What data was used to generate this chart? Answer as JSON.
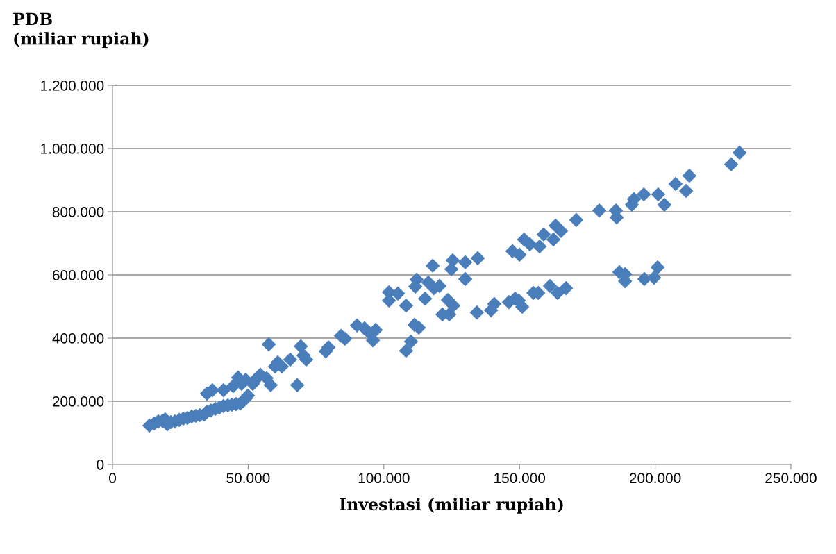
{
  "chart_data": {
    "type": "scatter",
    "xlabel": "Investasi (miliar rupiah)",
    "ylabel": "PDB\n(miliar rupiah)",
    "xlim": [
      0,
      250000
    ],
    "ylim": [
      0,
      1200000
    ],
    "xticks": [
      0,
      {
        "value": 50000,
        "label": "50.000"
      },
      {
        "value": 100000,
        "label": "100.000"
      },
      {
        "value": 150000,
        "label": "150.000"
      },
      {
        "value": 200000,
        "label": "200.000"
      },
      {
        "value": 250000,
        "label": "250.000"
      }
    ],
    "yticks": [
      0,
      {
        "value": 200000,
        "label": "200.000"
      },
      {
        "value": 400000,
        "label": "400.000"
      },
      {
        "value": 600000,
        "label": "600.000"
      },
      {
        "value": 800000,
        "label": "800.000"
      },
      {
        "value": 1000000,
        "label": "1.000.000"
      },
      {
        "value": 1200000,
        "label": "1.200.000"
      }
    ],
    "grid": "y",
    "marker": "diamond",
    "legend": false,
    "series": [
      {
        "color": "#4a7ebb",
        "x": [
          13600,
          15400,
          16900,
          18400,
          19400,
          20200,
          21500,
          23000,
          24600,
          26100,
          27600,
          29200,
          30700,
          32200,
          33800,
          34800,
          36300,
          37900,
          39400,
          40900,
          42500,
          44000,
          45500,
          47100,
          48100,
          49100,
          49900,
          34800,
          36800,
          40900,
          44500,
          46300,
          47600,
          49100,
          51700,
          53200,
          54500,
          56800,
          57600,
          58300,
          59900,
          60900,
          62400,
          65500,
          68100,
          69400,
          70400,
          71400,
          78600,
          79600,
          84200,
          85700,
          90100,
          92900,
          94500,
          96000,
          97000,
          101900,
          101900,
          105200,
          108200,
          112100,
          111600,
          115200,
          116400,
          118000,
          118500,
          120500,
          125400,
          124900,
          130000,
          130000,
          134600,
          111300,
          112900,
          110000,
          108200,
          121600,
          124100,
          123600,
          125600,
          134300,
          139500,
          140700,
          146100,
          148400,
          151000,
          149700,
          155100,
          147400,
          150000,
          151700,
          153800,
          157400,
          158900,
          162500,
          163300,
          165300,
          170900,
          179400,
          185500,
          185800,
          191400,
          192200,
          195800,
          201100,
          203400,
          207500,
          211400,
          212600,
          228000,
          231100,
          156900,
          161200,
          164000,
          167100,
          186800,
          188900,
          188900,
          196000,
          199600,
          200900
        ],
        "values": [
          123000,
          130000,
          136000,
          138000,
          143000,
          127000,
          134000,
          136000,
          141000,
          145000,
          147000,
          152000,
          154000,
          156000,
          158000,
          167000,
          171000,
          176000,
          180000,
          185000,
          187000,
          189000,
          191000,
          193000,
          200000,
          209000,
          218000,
          224000,
          235000,
          235000,
          248000,
          275000,
          255000,
          268000,
          255000,
          273000,
          284000,
          273000,
          380000,
          251000,
          310000,
          323000,
          310000,
          332000,
          251000,
          374000,
          345000,
          332000,
          358000,
          371000,
          407000,
          398000,
          440000,
          431000,
          418000,
          393000,
          426000,
          545000,
          519000,
          541000,
          503000,
          585000,
          563000,
          525000,
          576000,
          629000,
          558000,
          565000,
          646000,
          618000,
          640000,
          587000,
          653000,
          442000,
          433000,
          389000,
          360000,
          475000,
          475000,
          521000,
          503000,
          481000,
          488000,
          508000,
          514000,
          525000,
          499000,
          519000,
          543000,
          675000,
          664000,
          712000,
          697000,
          690000,
          728000,
          712000,
          756000,
          739000,
          774000,
          804000,
          804000,
          782000,
          822000,
          840000,
          855000,
          855000,
          822000,
          888000,
          866000,
          914000,
          950000,
          987000,
          543000,
          565000,
          543000,
          558000,
          609000,
          602000,
          580000,
          587000,
          591000,
          624000
        ]
      }
    ]
  }
}
